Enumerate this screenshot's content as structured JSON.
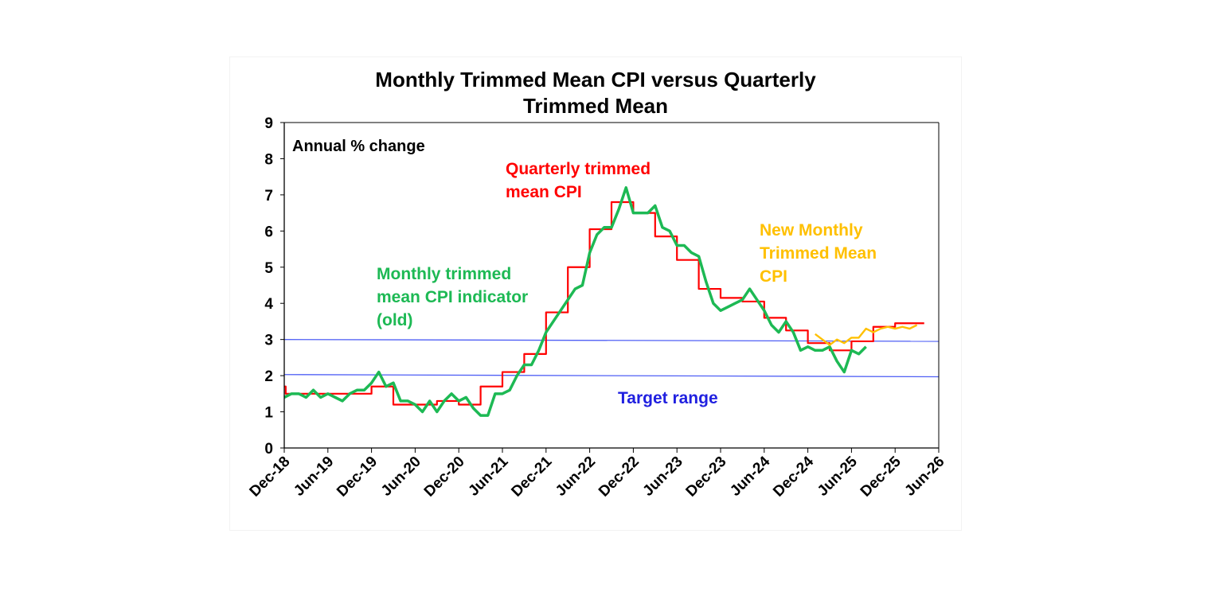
{
  "chart_data": {
    "type": "line",
    "title_lines": [
      "Monthly Trimmed Mean CPI versus Quarterly",
      "Trimmed Mean"
    ],
    "ylabel": "Annual % change",
    "ylim": [
      0,
      9
    ],
    "yticks": [
      0,
      1,
      2,
      3,
      4,
      5,
      6,
      7,
      8,
      9
    ],
    "x_start": "Dec-18",
    "x_end": "Jun-26",
    "xticks": [
      "Dec-18",
      "Jun-19",
      "Dec-19",
      "Jun-20",
      "Dec-20",
      "Jun-21",
      "Dec-21",
      "Jun-22",
      "Dec-22",
      "Jun-23",
      "Dec-23",
      "Jun-24",
      "Dec-24",
      "Jun-25",
      "Dec-25",
      "Jun-26"
    ],
    "colors": {
      "quarterly": "#ff0000",
      "monthly_old": "#1db954",
      "monthly_new": "#ffc000",
      "target": "#4f5ff5",
      "target_label": "#2020e0"
    },
    "annotations": {
      "quarterly": [
        "Quarterly trimmed",
        "mean CPI"
      ],
      "monthly_old": [
        "Monthly trimmed",
        "mean CPI indicator",
        "(old)"
      ],
      "monthly_new": [
        "New Monthly",
        "Trimmed Mean",
        "CPI"
      ],
      "target": [
        "Target range"
      ]
    },
    "target_lines": [
      {
        "start": 3.0,
        "end": 2.95
      },
      {
        "start": 2.03,
        "end": 1.97
      }
    ],
    "series": [
      {
        "key": "quarterly",
        "values": [
          [
            0,
            1.7
          ],
          [
            0.2,
            1.5
          ],
          [
            3,
            1.5
          ],
          [
            6,
            1.5
          ],
          [
            9,
            1.5
          ],
          [
            12,
            1.7
          ],
          [
            15,
            1.2
          ],
          [
            18,
            1.2
          ],
          [
            21,
            1.3
          ],
          [
            24,
            1.2
          ],
          [
            27,
            1.7
          ],
          [
            30,
            2.1
          ],
          [
            33,
            2.6
          ],
          [
            36,
            3.75
          ],
          [
            39,
            5.0
          ],
          [
            42,
            6.05
          ],
          [
            45,
            6.8
          ],
          [
            48,
            6.5
          ],
          [
            51,
            5.85
          ],
          [
            54,
            5.2
          ],
          [
            57,
            4.4
          ],
          [
            60,
            4.15
          ],
          [
            63,
            4.05
          ],
          [
            66,
            3.6
          ],
          [
            69,
            3.25
          ],
          [
            72,
            2.9
          ],
          [
            75,
            2.7
          ],
          [
            78,
            2.95
          ],
          [
            81,
            3.35
          ],
          [
            84,
            3.45
          ],
          [
            87,
            3.45
          ]
        ]
      },
      {
        "key": "monthly_old",
        "values": [
          [
            0,
            1.4
          ],
          [
            1,
            1.5
          ],
          [
            2,
            1.5
          ],
          [
            3,
            1.4
          ],
          [
            4,
            1.6
          ],
          [
            5,
            1.4
          ],
          [
            6,
            1.5
          ],
          [
            7,
            1.4
          ],
          [
            8,
            1.3
          ],
          [
            9,
            1.5
          ],
          [
            10,
            1.6
          ],
          [
            11,
            1.6
          ],
          [
            12,
            1.8
          ],
          [
            13,
            2.1
          ],
          [
            14,
            1.7
          ],
          [
            15,
            1.8
          ],
          [
            16,
            1.3
          ],
          [
            17,
            1.3
          ],
          [
            18,
            1.2
          ],
          [
            19,
            1.0
          ],
          [
            20,
            1.3
          ],
          [
            21,
            1.0
          ],
          [
            22,
            1.3
          ],
          [
            23,
            1.5
          ],
          [
            24,
            1.3
          ],
          [
            25,
            1.4
          ],
          [
            26,
            1.1
          ],
          [
            27,
            0.9
          ],
          [
            28,
            0.9
          ],
          [
            29,
            1.5
          ],
          [
            30,
            1.5
          ],
          [
            31,
            1.6
          ],
          [
            32,
            2.0
          ],
          [
            33,
            2.3
          ],
          [
            34,
            2.3
          ],
          [
            35,
            2.7
          ],
          [
            36,
            3.2
          ],
          [
            37,
            3.5
          ],
          [
            38,
            3.8
          ],
          [
            39,
            4.1
          ],
          [
            40,
            4.4
          ],
          [
            41,
            4.5
          ],
          [
            42,
            5.4
          ],
          [
            43,
            5.9
          ],
          [
            44,
            6.1
          ],
          [
            45,
            6.1
          ],
          [
            46,
            6.6
          ],
          [
            47,
            7.2
          ],
          [
            48,
            6.5
          ],
          [
            49,
            6.5
          ],
          [
            50,
            6.5
          ],
          [
            51,
            6.7
          ],
          [
            52,
            6.1
          ],
          [
            53,
            6.0
          ],
          [
            54,
            5.6
          ],
          [
            55,
            5.6
          ],
          [
            56,
            5.4
          ],
          [
            57,
            5.3
          ],
          [
            58,
            4.6
          ],
          [
            59,
            4.0
          ],
          [
            60,
            3.8
          ],
          [
            61,
            3.9
          ],
          [
            62,
            4.0
          ],
          [
            63,
            4.1
          ],
          [
            64,
            4.4
          ],
          [
            65,
            4.1
          ],
          [
            66,
            3.8
          ],
          [
            67,
            3.4
          ],
          [
            68,
            3.2
          ],
          [
            69,
            3.5
          ],
          [
            70,
            3.2
          ],
          [
            71,
            2.7
          ],
          [
            72,
            2.8
          ],
          [
            73,
            2.7
          ],
          [
            74,
            2.7
          ],
          [
            75,
            2.8
          ],
          [
            76,
            2.4
          ],
          [
            77,
            2.1
          ],
          [
            78,
            2.7
          ],
          [
            79,
            2.6
          ],
          [
            80,
            2.8
          ]
        ]
      },
      {
        "key": "monthly_new",
        "values": [
          [
            73,
            3.15
          ],
          [
            74,
            3.0
          ],
          [
            75,
            2.85
          ],
          [
            76,
            3.0
          ],
          [
            77,
            2.9
          ],
          [
            78,
            3.05
          ],
          [
            79,
            3.05
          ],
          [
            80,
            3.3
          ],
          [
            81,
            3.2
          ],
          [
            82,
            3.3
          ],
          [
            83,
            3.35
          ],
          [
            84,
            3.3
          ],
          [
            85,
            3.35
          ],
          [
            86,
            3.3
          ],
          [
            87,
            3.4
          ]
        ]
      }
    ]
  }
}
